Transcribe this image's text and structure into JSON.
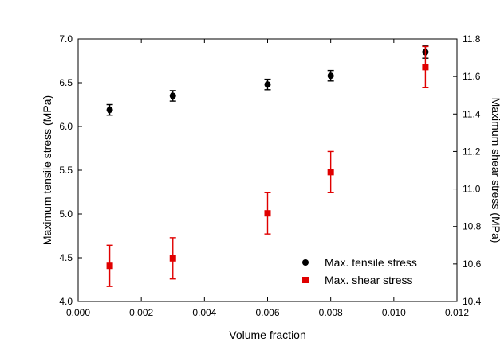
{
  "chart_data": {
    "type": "scatter",
    "title": "",
    "xlabel": "Volume fraction",
    "ylabel_left": "Maximum tensile stress (MPa)",
    "ylabel_right": "Maximum shear stress (MPa)",
    "xlim": [
      0.0,
      0.012
    ],
    "ylim_left": [
      4.0,
      7.0
    ],
    "ylim_right": [
      10.4,
      11.8
    ],
    "x_ticks": [
      "0.000",
      "0.002",
      "0.004",
      "0.006",
      "0.008",
      "0.010",
      "0.012"
    ],
    "y_left_ticks": [
      "4.0",
      "4.5",
      "5.0",
      "5.5",
      "6.0",
      "6.5",
      "7.0"
    ],
    "y_right_ticks": [
      "10.4",
      "10.6",
      "10.8",
      "11.0",
      "11.2",
      "11.4",
      "11.6",
      "11.8"
    ],
    "grid": false,
    "legend_position": "bottom-right",
    "series": [
      {
        "name": "Max. tensile stress",
        "axis": "left",
        "marker": "circle",
        "color": "#000000",
        "x": [
          0.001,
          0.003,
          0.006,
          0.008,
          0.011
        ],
        "y": [
          6.19,
          6.35,
          6.48,
          6.58,
          6.85
        ],
        "err": [
          0.06,
          0.06,
          0.06,
          0.06,
          0.07
        ]
      },
      {
        "name": "Max. shear stress",
        "axis": "right",
        "marker": "square",
        "color": "#e00000",
        "x": [
          0.001,
          0.003,
          0.006,
          0.008,
          0.011
        ],
        "y": [
          10.59,
          10.63,
          10.87,
          11.09,
          11.65
        ],
        "err": [
          0.11,
          0.11,
          0.11,
          0.11,
          0.11
        ]
      }
    ]
  }
}
